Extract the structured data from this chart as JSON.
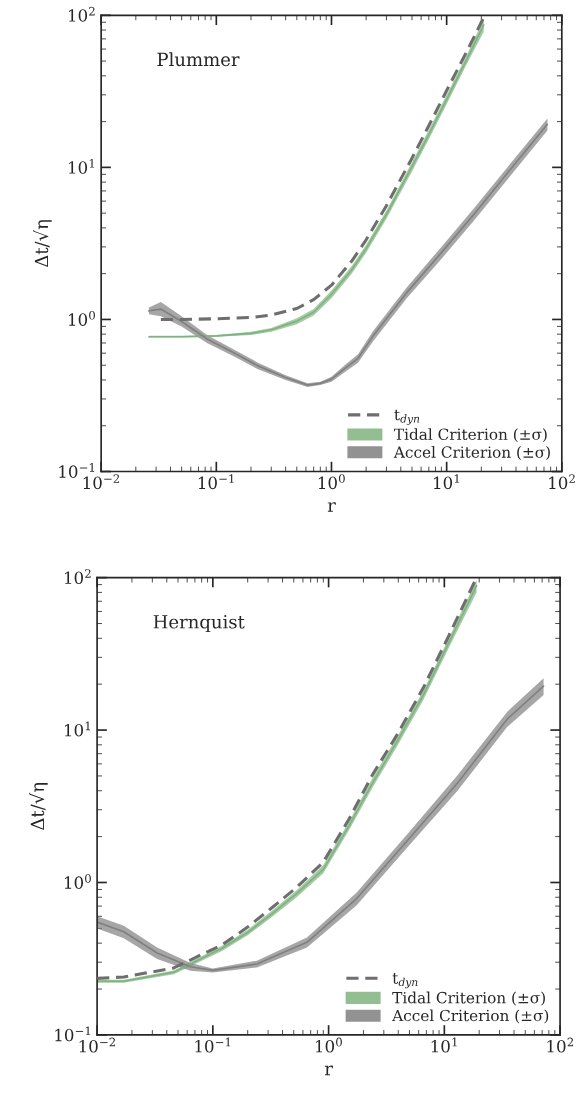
{
  "chart_data": [
    {
      "type": "line",
      "xlabel": "r",
      "ylabel": "Δt/√η",
      "log": "xy",
      "legend": "bottom right",
      "grid": false,
      "xlim": [
        0.01,
        100
      ],
      "ylim": [
        0.1,
        100
      ],
      "xticks": [
        {
          "value": 0.01,
          "label": "10$^{−2}$"
        },
        {
          "value": 0.1,
          "label": "10$^{−1}$"
        },
        {
          "value": 1,
          "label": "10$^{0}$"
        },
        {
          "value": 10,
          "label": "10$^{1}$"
        },
        {
          "value": 100,
          "label": "10$^{2}$"
        }
      ],
      "yticks": [
        {
          "value": 0.1,
          "label": "10$^{−1}$"
        },
        {
          "value": 1,
          "label": "10$^{0}$"
        },
        {
          "value": 10,
          "label": "10$^{1}$"
        },
        {
          "value": 100,
          "label": "10$^{2}$"
        }
      ],
      "annotations": [
        "Plummer"
      ],
      "series": [
        {
          "type": "line",
          "name": "t$_{dyn}$",
          "color": "#6e6e6e",
          "line_style": "dashed",
          "x": [
            0.033,
            0.05,
            0.1,
            0.2,
            0.3,
            0.5,
            0.7,
            1,
            1.5,
            2,
            3,
            5,
            7,
            10,
            15,
            20,
            21.5
          ],
          "values": [
            1.0,
            1.0,
            1.01,
            1.03,
            1.07,
            1.18,
            1.35,
            1.68,
            2.42,
            3.34,
            5.6,
            11.5,
            18.8,
            32,
            58,
            90,
            100
          ]
        },
        {
          "type": "line",
          "name": "Tidal Criterion (±σ)",
          "color": "#7fb37f",
          "x": [
            0.026,
            0.05,
            0.1,
            0.2,
            0.3,
            0.5,
            0.7,
            1,
            1.5,
            2,
            3,
            5,
            7,
            10,
            15,
            21
          ],
          "values": [
            0.77,
            0.77,
            0.78,
            0.81,
            0.855,
            0.975,
            1.115,
            1.465,
            2.12,
            2.92,
            4.9,
            10.1,
            16.4,
            28,
            51.5,
            86.5
          ],
          "lower": [
            0.76,
            0.76,
            0.77,
            0.79,
            0.83,
            0.93,
            1.06,
            1.38,
            2.0,
            2.75,
            4.6,
            9.4,
            15.3,
            26,
            48,
            78
          ],
          "upper": [
            0.78,
            0.78,
            0.79,
            0.83,
            0.88,
            1.02,
            1.17,
            1.55,
            2.25,
            3.1,
            5.2,
            10.8,
            17.6,
            30,
            55,
            95
          ]
        },
        {
          "type": "line",
          "name": "Accel Criterion (±σ)",
          "color": "#808080",
          "x": [
            0.026,
            0.033,
            0.05,
            0.083,
            0.15,
            0.23,
            0.4,
            0.62,
            0.8,
            1,
            1.3,
            1.7,
            2.3,
            4.5,
            9,
            17,
            34,
            75
          ],
          "values": [
            1.14,
            1.17,
            0.97,
            0.745,
            0.59,
            0.495,
            0.415,
            0.37,
            0.38,
            0.405,
            0.475,
            0.555,
            0.78,
            1.5,
            2.75,
            4.85,
            9.25,
            19.2
          ],
          "lower": [
            1.08,
            1.05,
            0.9,
            0.7,
            0.56,
            0.47,
            0.4,
            0.36,
            0.37,
            0.39,
            0.45,
            0.52,
            0.72,
            1.38,
            2.5,
            4.4,
            8.4,
            17.5
          ],
          "upper": [
            1.2,
            1.3,
            1.05,
            0.79,
            0.62,
            0.52,
            0.43,
            0.38,
            0.39,
            0.42,
            0.5,
            0.59,
            0.84,
            1.62,
            3.0,
            5.3,
            10.1,
            21
          ]
        }
      ]
    },
    {
      "type": "line",
      "xlabel": "r",
      "ylabel": "Δt/√η",
      "log": "xy",
      "legend": "bottom right",
      "grid": false,
      "xlim": [
        0.01,
        100
      ],
      "ylim": [
        0.1,
        100
      ],
      "xticks": [
        {
          "value": 0.01,
          "label": "10$^{−2}$"
        },
        {
          "value": 0.1,
          "label": "10$^{−1}$"
        },
        {
          "value": 1,
          "label": "10$^{0}$"
        },
        {
          "value": 10,
          "label": "10$^{1}$"
        },
        {
          "value": 100,
          "label": "10$^{2}$"
        }
      ],
      "yticks": [
        {
          "value": 0.1,
          "label": "10$^{−1}$"
        },
        {
          "value": 1,
          "label": "10$^{0}$"
        },
        {
          "value": 10,
          "label": "10$^{1}$"
        },
        {
          "value": 100,
          "label": "10$^{2}$"
        }
      ],
      "annotations": [
        "Hernquist"
      ],
      "series": [
        {
          "type": "line",
          "name": "t$_{dyn}$",
          "color": "#6e6e6e",
          "line_style": "dashed",
          "x": [
            0.01,
            0.017,
            0.046,
            0.12,
            0.2,
            0.33,
            0.53,
            0.9,
            1.5,
            2.4,
            3.9,
            6.6,
            11,
            19
          ],
          "values": [
            0.235,
            0.24,
            0.275,
            0.39,
            0.51,
            0.69,
            0.93,
            1.36,
            2.6,
            5.1,
            9.3,
            19,
            42,
            100
          ]
        },
        {
          "type": "line",
          "name": "Tidal Criterion (±σ)",
          "color": "#7fb37f",
          "x": [
            0.01,
            0.017,
            0.046,
            0.12,
            0.2,
            0.33,
            0.53,
            0.9,
            1.5,
            2.4,
            3.9,
            6.6,
            11,
            19
          ],
          "values": [
            0.225,
            0.225,
            0.258,
            0.37,
            0.47,
            0.63,
            0.845,
            1.22,
            2.35,
            4.5,
            8.4,
            17,
            37.8,
            88.5
          ],
          "lower": [
            0.22,
            0.22,
            0.25,
            0.355,
            0.45,
            0.6,
            0.8,
            1.15,
            2.2,
            4.2,
            7.8,
            15.8,
            35,
            80
          ],
          "upper": [
            0.23,
            0.23,
            0.265,
            0.385,
            0.49,
            0.66,
            0.89,
            1.3,
            2.5,
            4.85,
            9.0,
            18.2,
            40.5,
            97
          ]
        },
        {
          "type": "line",
          "name": "Accel Criterion (±σ)",
          "color": "#808080",
          "x": [
            0.01,
            0.017,
            0.033,
            0.064,
            0.1,
            0.24,
            0.65,
            1.75,
            4.7,
            13,
            35,
            72
          ],
          "values": [
            0.55,
            0.475,
            0.345,
            0.28,
            0.265,
            0.292,
            0.405,
            0.785,
            1.85,
            4.5,
            11.8,
            19.4
          ],
          "lower": [
            0.5,
            0.43,
            0.315,
            0.264,
            0.257,
            0.277,
            0.375,
            0.71,
            1.67,
            4.0,
            10.5,
            17
          ],
          "upper": [
            0.6,
            0.52,
            0.375,
            0.296,
            0.273,
            0.307,
            0.436,
            0.86,
            2.04,
            5.06,
            13.2,
            21.9
          ]
        }
      ]
    }
  ]
}
